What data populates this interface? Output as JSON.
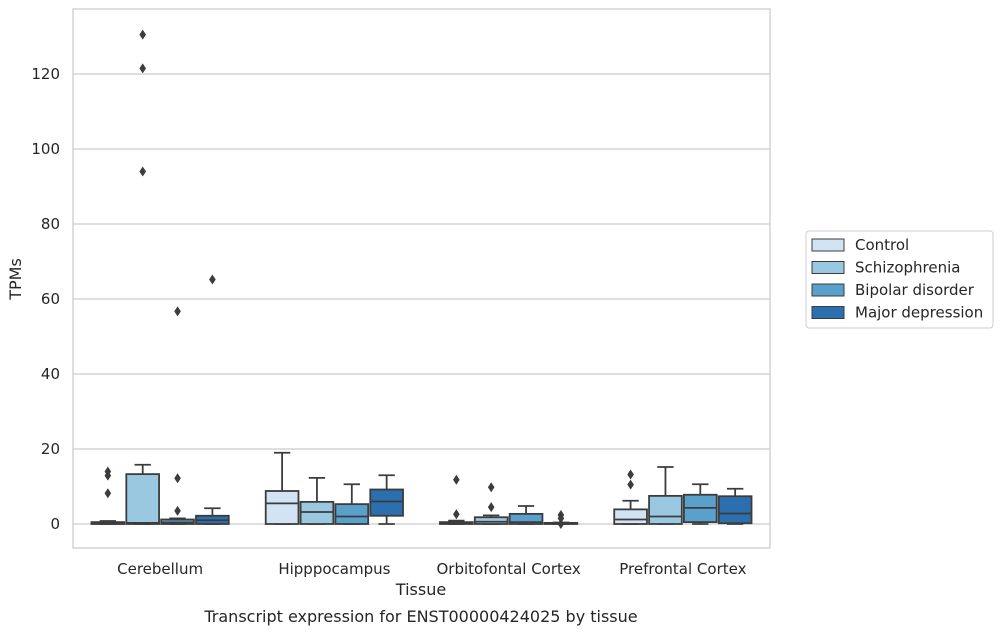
{
  "chart_data": {
    "type": "box",
    "title": "Transcript expression for ENST00000424025 by tissue",
    "xlabel": "Tissue",
    "ylabel": "TPMs",
    "ylim": [
      -6.5,
      138
    ],
    "yticks": [
      0,
      20,
      40,
      60,
      80,
      100,
      120
    ],
    "grid": "horizontal",
    "legend_position": "right",
    "categories": [
      "Cerebellum",
      "Hipppocampus",
      "Orbitofontal Cortex",
      "Prefrontal Cortex"
    ],
    "series": [
      {
        "name": "Control",
        "color": "#d2e3f3",
        "boxes": [
          {
            "whisker_low": 0,
            "q1": 0,
            "median": 0.2,
            "q3": 0.5,
            "whisker_high": 0.8,
            "outliers": [
              8.2,
              12.9,
              14.0
            ]
          },
          {
            "whisker_low": 0,
            "q1": 0,
            "median": 5.5,
            "q3": 8.8,
            "whisker_high": 19.0,
            "outliers": []
          },
          {
            "whisker_low": 0,
            "q1": 0,
            "median": 0.2,
            "q3": 0.5,
            "whisker_high": 0.9,
            "outliers": [
              2.6,
              11.8
            ]
          },
          {
            "whisker_low": 0,
            "q1": 0,
            "median": 1.2,
            "q3": 3.9,
            "whisker_high": 6.2,
            "outliers": [
              10.5,
              13.2
            ]
          }
        ]
      },
      {
        "name": "Schizophrenia",
        "color": "#9ac8e0",
        "boxes": [
          {
            "whisker_low": 0,
            "q1": 0,
            "median": 0.3,
            "q3": 13.3,
            "whisker_high": 15.8,
            "outliers": [
              94.0,
              121.5,
              130.5
            ]
          },
          {
            "whisker_low": 0,
            "q1": 0,
            "median": 3.2,
            "q3": 5.9,
            "whisker_high": 12.3,
            "outliers": []
          },
          {
            "whisker_low": 0,
            "q1": 0,
            "median": 0.6,
            "q3": 1.8,
            "whisker_high": 2.3,
            "outliers": [
              4.5,
              9.8
            ]
          },
          {
            "whisker_low": 0,
            "q1": 0,
            "median": 2.0,
            "q3": 7.5,
            "whisker_high": 15.2,
            "outliers": []
          }
        ]
      },
      {
        "name": "Bipolar disorder",
        "color": "#5aa0cd",
        "boxes": [
          {
            "whisker_low": 0,
            "q1": 0,
            "median": 0.4,
            "q3": 1.2,
            "whisker_high": 1.5,
            "outliers": [
              3.5,
              12.2,
              56.7
            ]
          },
          {
            "whisker_low": 0,
            "q1": 0,
            "median": 2.0,
            "q3": 5.3,
            "whisker_high": 10.6,
            "outliers": []
          },
          {
            "whisker_low": 0,
            "q1": 0,
            "median": 0.5,
            "q3": 2.7,
            "whisker_high": 4.8,
            "outliers": []
          },
          {
            "whisker_low": 0,
            "q1": 0.5,
            "median": 4.3,
            "q3": 7.8,
            "whisker_high": 10.6,
            "outliers": []
          }
        ]
      },
      {
        "name": "Major depression",
        "color": "#2c6faf",
        "boxes": [
          {
            "whisker_low": 0,
            "q1": 0,
            "median": 1.0,
            "q3": 2.2,
            "whisker_high": 4.2,
            "outliers": [
              65.2
            ]
          },
          {
            "whisker_low": 0,
            "q1": 2.2,
            "median": 6.0,
            "q3": 9.2,
            "whisker_high": 13.0,
            "outliers": []
          },
          {
            "whisker_low": 0,
            "q1": 0,
            "median": 0.1,
            "q3": 0.3,
            "whisker_high": 0.4,
            "outliers": [
              0,
              1.5,
              2.4
            ]
          },
          {
            "whisker_low": 0,
            "q1": 0.2,
            "median": 2.8,
            "q3": 7.4,
            "whisker_high": 9.4,
            "outliers": []
          }
        ]
      }
    ]
  }
}
